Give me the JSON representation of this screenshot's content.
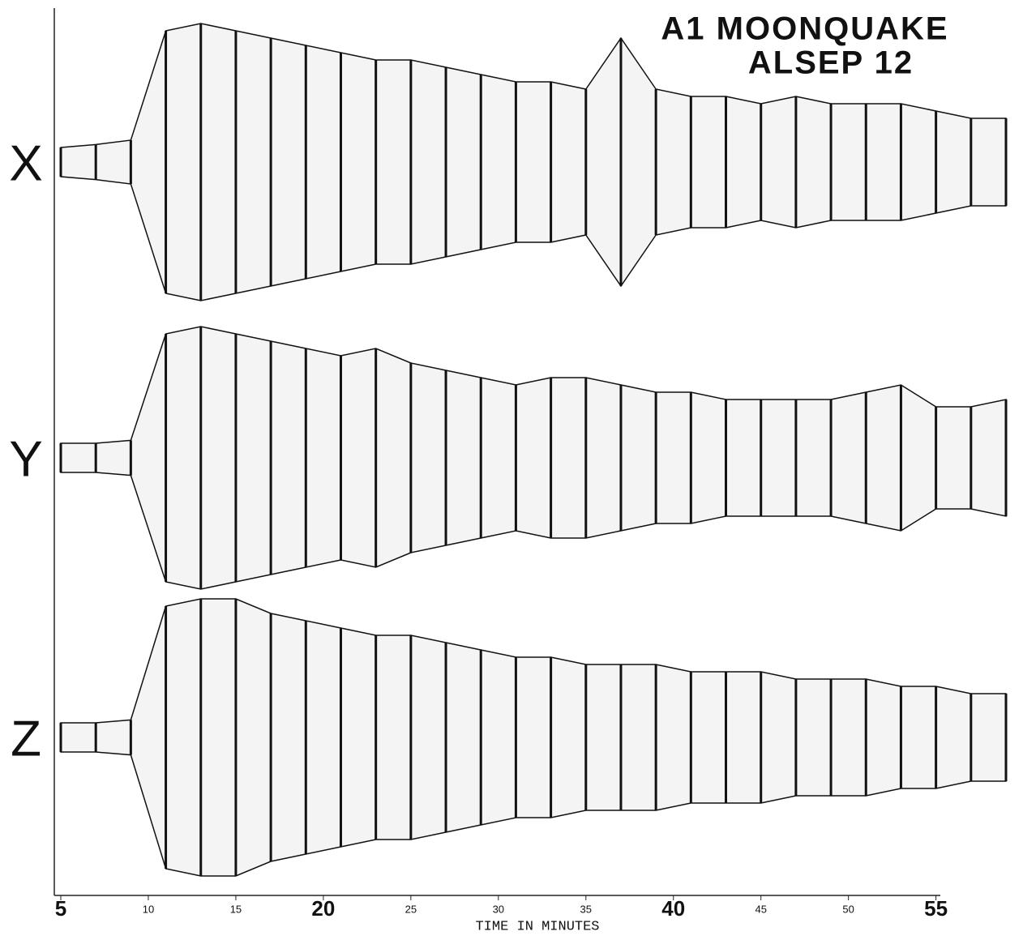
{
  "chart_data": {
    "type": "seismogram",
    "title": "A1 MOONQUAKE",
    "subtitle": "ALSEP 12",
    "x_label": "TIME IN MINUTES",
    "x": [
      5,
      7,
      9,
      11,
      13,
      15,
      17,
      19,
      21,
      23,
      25,
      27,
      29,
      31,
      33,
      35,
      37,
      39,
      41,
      43,
      45,
      47,
      49,
      51,
      53,
      55,
      57,
      59
    ],
    "series": [
      {
        "name": "X",
        "color": "#111111",
        "values": [
          0.1,
          0.12,
          0.15,
          0.9,
          0.95,
          0.9,
          0.85,
          0.8,
          0.75,
          0.7,
          0.7,
          0.65,
          0.6,
          0.55,
          0.55,
          0.5,
          0.85,
          0.5,
          0.45,
          0.45,
          0.4,
          0.45,
          0.4,
          0.4,
          0.4,
          0.35,
          0.3,
          0.3
        ]
      },
      {
        "name": "Y",
        "color": "#111111",
        "values": [
          0.1,
          0.1,
          0.12,
          0.85,
          0.9,
          0.85,
          0.8,
          0.75,
          0.7,
          0.75,
          0.65,
          0.6,
          0.55,
          0.5,
          0.55,
          0.55,
          0.5,
          0.45,
          0.45,
          0.4,
          0.4,
          0.4,
          0.4,
          0.45,
          0.5,
          0.35,
          0.35,
          0.4
        ]
      },
      {
        "name": "Z",
        "color": "#111111",
        "values": [
          0.1,
          0.1,
          0.12,
          0.9,
          0.95,
          0.95,
          0.85,
          0.8,
          0.75,
          0.7,
          0.7,
          0.65,
          0.6,
          0.55,
          0.55,
          0.5,
          0.5,
          0.5,
          0.45,
          0.45,
          0.45,
          0.4,
          0.4,
          0.4,
          0.35,
          0.35,
          0.3,
          0.3
        ]
      }
    ],
    "xlim": [
      5,
      59
    ],
    "xticks": [
      5,
      10,
      15,
      20,
      25,
      30,
      35,
      40,
      45,
      50,
      55
    ],
    "xticks_bold": [
      5,
      20,
      40,
      55
    ]
  }
}
